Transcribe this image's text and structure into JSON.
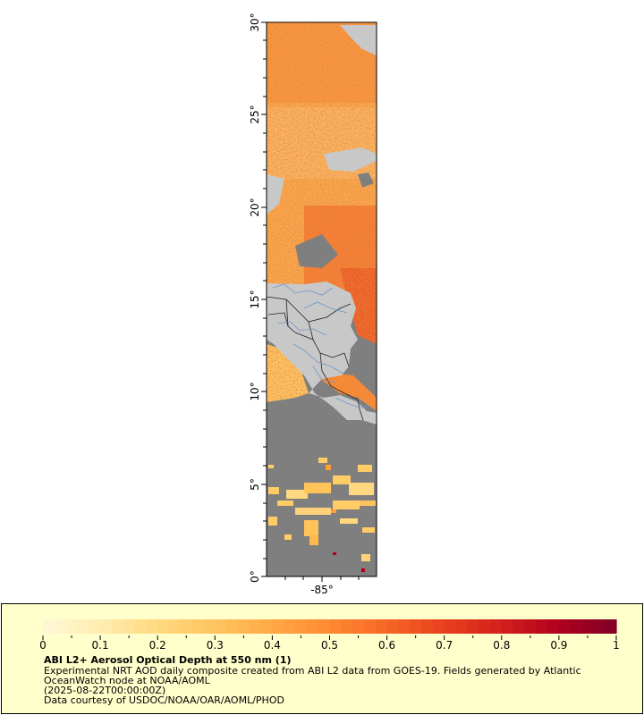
{
  "map": {
    "lat_labels": [
      "30°",
      "25°",
      "20°",
      "15°",
      "10°",
      "5°",
      "0°"
    ],
    "lat_values": [
      30,
      25,
      20,
      15,
      10,
      5,
      0
    ],
    "lon_label": "-85°",
    "lon_value": -85,
    "colors": {
      "land": "#c8c8c8",
      "no_data": "#7f7f7f",
      "border": "#222222",
      "river": "#6f97c8",
      "frame": "#000000"
    }
  },
  "legend": {
    "ticks": [
      "0",
      "0.1",
      "0.2",
      "0.3",
      "0.4",
      "0.5",
      "0.6",
      "0.7",
      "0.8",
      "0.9",
      "1"
    ],
    "range": [
      0,
      1
    ],
    "colors": [
      "#fff8d8",
      "#ffedb0",
      "#ffd980",
      "#ffc560",
      "#ffa845",
      "#ff8a32",
      "#f66626",
      "#e8401e",
      "#d31f1c",
      "#b0001e",
      "#800026"
    ],
    "background": "#ffffcc"
  },
  "caption": {
    "title": "ABI L2+ Aerosol Optical Depth at 550 nm (1)",
    "line1": "Experimental NRT AOD daily composite created from ABI L2 data from GOES-19. Fields generated by Atlantic",
    "line2": "OceanWatch node at NOAA/AOML",
    "line3": "(2025-08-22T00:00:00Z)",
    "line4": "Data courtesy of USDOC/NOAA/OAR/AOML/PHOD"
  }
}
